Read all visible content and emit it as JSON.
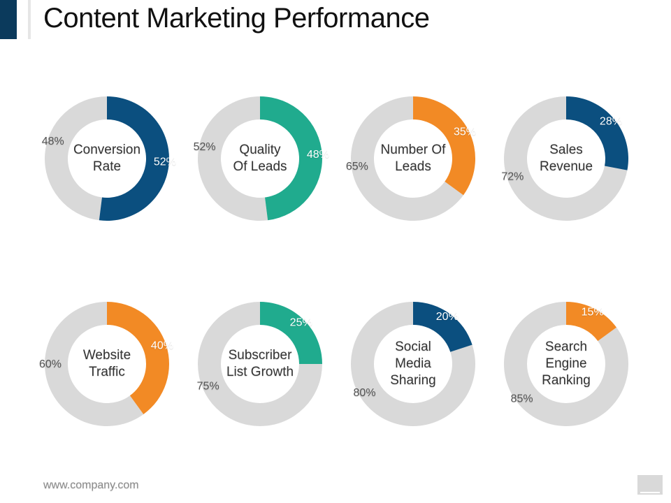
{
  "header": {
    "title": "Content Marketing Performance"
  },
  "footer": {
    "website": "www.company.com"
  },
  "colors": {
    "navy": "#0b4f7f",
    "teal": "#20ab8e",
    "orange": "#f28a25",
    "remainder": "#d9d9d9"
  },
  "chart_data": [
    {
      "type": "pie",
      "label": [
        "Conversion",
        "Rate"
      ],
      "value": 52,
      "remainder": 48,
      "value_label": "52%",
      "remainder_label": "48%",
      "color": "#0b4f7f"
    },
    {
      "type": "pie",
      "label": [
        "Quality",
        "Of Leads"
      ],
      "value": 48,
      "remainder": 52,
      "value_label": "48%",
      "remainder_label": "52%",
      "color": "#20ab8e"
    },
    {
      "type": "pie",
      "label": [
        "Number Of",
        "Leads"
      ],
      "value": 35,
      "remainder": 65,
      "value_label": "35%",
      "remainder_label": "65%",
      "color": "#f28a25"
    },
    {
      "type": "pie",
      "label": [
        "Sales",
        "Revenue"
      ],
      "value": 28,
      "remainder": 72,
      "value_label": "28%",
      "remainder_label": "72%",
      "color": "#0b4f7f"
    },
    {
      "type": "pie",
      "label": [
        "Website",
        "Traffic"
      ],
      "value": 40,
      "remainder": 60,
      "value_label": "40%",
      "remainder_label": "60%",
      "color": "#f28a25"
    },
    {
      "type": "pie",
      "label": [
        "Subscriber",
        "List Growth"
      ],
      "value": 25,
      "remainder": 75,
      "value_label": "25%",
      "remainder_label": "75%",
      "color": "#20ab8e"
    },
    {
      "type": "pie",
      "label": [
        "Social",
        "Media",
        "Sharing"
      ],
      "value": 20,
      "remainder": 80,
      "value_label": "20%",
      "remainder_label": "80%",
      "color": "#0b4f7f"
    },
    {
      "type": "pie",
      "label": [
        "Search",
        "Engine",
        "Ranking"
      ],
      "value": 15,
      "remainder": 85,
      "value_label": "15%",
      "remainder_label": "85%",
      "color": "#f28a25"
    }
  ]
}
